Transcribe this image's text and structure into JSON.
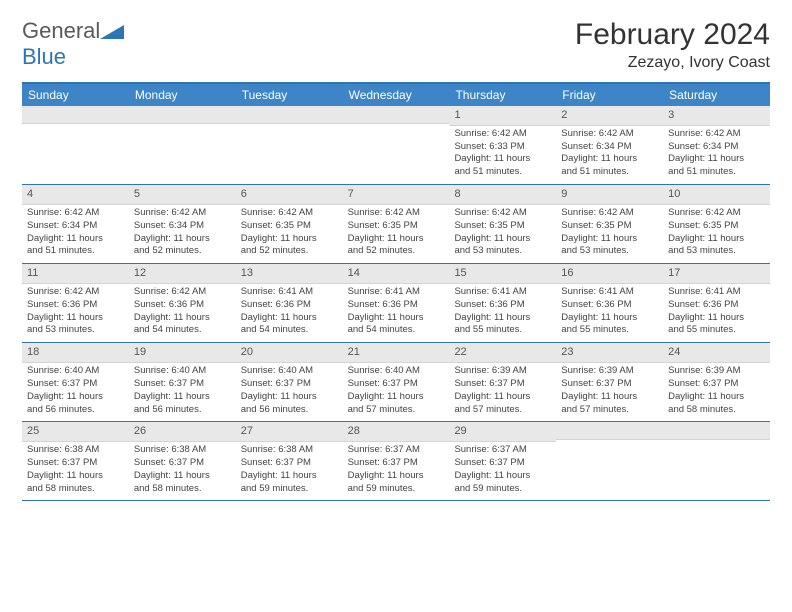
{
  "logo": {
    "word1": "General",
    "word2": "Blue"
  },
  "title": "February 2024",
  "subtitle": "Zezayo, Ivory Coast",
  "weekdays": [
    "Sunday",
    "Monday",
    "Tuesday",
    "Wednesday",
    "Thursday",
    "Friday",
    "Saturday"
  ],
  "colors": {
    "header_bar": "#3d85c6",
    "border": "#2e75b6",
    "daynum_bg": "#e8e8e8",
    "text": "#444444"
  },
  "weeks": [
    [
      {
        "n": "",
        "sr": "",
        "ss": "",
        "d1": "",
        "d2": ""
      },
      {
        "n": "",
        "sr": "",
        "ss": "",
        "d1": "",
        "d2": ""
      },
      {
        "n": "",
        "sr": "",
        "ss": "",
        "d1": "",
        "d2": ""
      },
      {
        "n": "",
        "sr": "",
        "ss": "",
        "d1": "",
        "d2": ""
      },
      {
        "n": "1",
        "sr": "Sunrise: 6:42 AM",
        "ss": "Sunset: 6:33 PM",
        "d1": "Daylight: 11 hours",
        "d2": "and 51 minutes."
      },
      {
        "n": "2",
        "sr": "Sunrise: 6:42 AM",
        "ss": "Sunset: 6:34 PM",
        "d1": "Daylight: 11 hours",
        "d2": "and 51 minutes."
      },
      {
        "n": "3",
        "sr": "Sunrise: 6:42 AM",
        "ss": "Sunset: 6:34 PM",
        "d1": "Daylight: 11 hours",
        "d2": "and 51 minutes."
      }
    ],
    [
      {
        "n": "4",
        "sr": "Sunrise: 6:42 AM",
        "ss": "Sunset: 6:34 PM",
        "d1": "Daylight: 11 hours",
        "d2": "and 51 minutes."
      },
      {
        "n": "5",
        "sr": "Sunrise: 6:42 AM",
        "ss": "Sunset: 6:34 PM",
        "d1": "Daylight: 11 hours",
        "d2": "and 52 minutes."
      },
      {
        "n": "6",
        "sr": "Sunrise: 6:42 AM",
        "ss": "Sunset: 6:35 PM",
        "d1": "Daylight: 11 hours",
        "d2": "and 52 minutes."
      },
      {
        "n": "7",
        "sr": "Sunrise: 6:42 AM",
        "ss": "Sunset: 6:35 PM",
        "d1": "Daylight: 11 hours",
        "d2": "and 52 minutes."
      },
      {
        "n": "8",
        "sr": "Sunrise: 6:42 AM",
        "ss": "Sunset: 6:35 PM",
        "d1": "Daylight: 11 hours",
        "d2": "and 53 minutes."
      },
      {
        "n": "9",
        "sr": "Sunrise: 6:42 AM",
        "ss": "Sunset: 6:35 PM",
        "d1": "Daylight: 11 hours",
        "d2": "and 53 minutes."
      },
      {
        "n": "10",
        "sr": "Sunrise: 6:42 AM",
        "ss": "Sunset: 6:35 PM",
        "d1": "Daylight: 11 hours",
        "d2": "and 53 minutes."
      }
    ],
    [
      {
        "n": "11",
        "sr": "Sunrise: 6:42 AM",
        "ss": "Sunset: 6:36 PM",
        "d1": "Daylight: 11 hours",
        "d2": "and 53 minutes."
      },
      {
        "n": "12",
        "sr": "Sunrise: 6:42 AM",
        "ss": "Sunset: 6:36 PM",
        "d1": "Daylight: 11 hours",
        "d2": "and 54 minutes."
      },
      {
        "n": "13",
        "sr": "Sunrise: 6:41 AM",
        "ss": "Sunset: 6:36 PM",
        "d1": "Daylight: 11 hours",
        "d2": "and 54 minutes."
      },
      {
        "n": "14",
        "sr": "Sunrise: 6:41 AM",
        "ss": "Sunset: 6:36 PM",
        "d1": "Daylight: 11 hours",
        "d2": "and 54 minutes."
      },
      {
        "n": "15",
        "sr": "Sunrise: 6:41 AM",
        "ss": "Sunset: 6:36 PM",
        "d1": "Daylight: 11 hours",
        "d2": "and 55 minutes."
      },
      {
        "n": "16",
        "sr": "Sunrise: 6:41 AM",
        "ss": "Sunset: 6:36 PM",
        "d1": "Daylight: 11 hours",
        "d2": "and 55 minutes."
      },
      {
        "n": "17",
        "sr": "Sunrise: 6:41 AM",
        "ss": "Sunset: 6:36 PM",
        "d1": "Daylight: 11 hours",
        "d2": "and 55 minutes."
      }
    ],
    [
      {
        "n": "18",
        "sr": "Sunrise: 6:40 AM",
        "ss": "Sunset: 6:37 PM",
        "d1": "Daylight: 11 hours",
        "d2": "and 56 minutes."
      },
      {
        "n": "19",
        "sr": "Sunrise: 6:40 AM",
        "ss": "Sunset: 6:37 PM",
        "d1": "Daylight: 11 hours",
        "d2": "and 56 minutes."
      },
      {
        "n": "20",
        "sr": "Sunrise: 6:40 AM",
        "ss": "Sunset: 6:37 PM",
        "d1": "Daylight: 11 hours",
        "d2": "and 56 minutes."
      },
      {
        "n": "21",
        "sr": "Sunrise: 6:40 AM",
        "ss": "Sunset: 6:37 PM",
        "d1": "Daylight: 11 hours",
        "d2": "and 57 minutes."
      },
      {
        "n": "22",
        "sr": "Sunrise: 6:39 AM",
        "ss": "Sunset: 6:37 PM",
        "d1": "Daylight: 11 hours",
        "d2": "and 57 minutes."
      },
      {
        "n": "23",
        "sr": "Sunrise: 6:39 AM",
        "ss": "Sunset: 6:37 PM",
        "d1": "Daylight: 11 hours",
        "d2": "and 57 minutes."
      },
      {
        "n": "24",
        "sr": "Sunrise: 6:39 AM",
        "ss": "Sunset: 6:37 PM",
        "d1": "Daylight: 11 hours",
        "d2": "and 58 minutes."
      }
    ],
    [
      {
        "n": "25",
        "sr": "Sunrise: 6:38 AM",
        "ss": "Sunset: 6:37 PM",
        "d1": "Daylight: 11 hours",
        "d2": "and 58 minutes."
      },
      {
        "n": "26",
        "sr": "Sunrise: 6:38 AM",
        "ss": "Sunset: 6:37 PM",
        "d1": "Daylight: 11 hours",
        "d2": "and 58 minutes."
      },
      {
        "n": "27",
        "sr": "Sunrise: 6:38 AM",
        "ss": "Sunset: 6:37 PM",
        "d1": "Daylight: 11 hours",
        "d2": "and 59 minutes."
      },
      {
        "n": "28",
        "sr": "Sunrise: 6:37 AM",
        "ss": "Sunset: 6:37 PM",
        "d1": "Daylight: 11 hours",
        "d2": "and 59 minutes."
      },
      {
        "n": "29",
        "sr": "Sunrise: 6:37 AM",
        "ss": "Sunset: 6:37 PM",
        "d1": "Daylight: 11 hours",
        "d2": "and 59 minutes."
      },
      {
        "n": "",
        "sr": "",
        "ss": "",
        "d1": "",
        "d2": ""
      },
      {
        "n": "",
        "sr": "",
        "ss": "",
        "d1": "",
        "d2": ""
      }
    ]
  ]
}
